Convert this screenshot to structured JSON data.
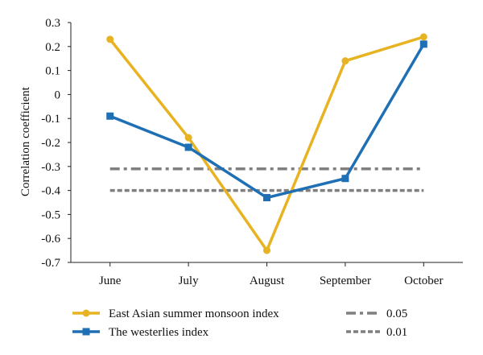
{
  "chart_data": {
    "type": "line",
    "categories": [
      "June",
      "July",
      "August",
      "September",
      "October"
    ],
    "ylabel": "Correlation coefficient",
    "ylim": [
      -0.7,
      0.3
    ],
    "yticks": [
      "0.3",
      "0.2",
      "0.1",
      "0",
      "-0.1",
      "-0.2",
      "-0.3",
      "-0.4",
      "-0.5",
      "-0.6",
      "-0.7"
    ],
    "grid": false,
    "legend_position": "bottom",
    "series": [
      {
        "name": "East Asian summer monsoon index",
        "values": [
          0.23,
          -0.18,
          -0.65,
          0.14,
          0.24
        ],
        "color": "#e8b322",
        "marker": "circle"
      },
      {
        "name": "The westerlies index",
        "values": [
          -0.09,
          -0.22,
          -0.43,
          -0.35,
          0.21
        ],
        "color": "#1f6fb5",
        "marker": "square"
      }
    ],
    "reference_lines": [
      {
        "name": "0.05",
        "value": -0.31,
        "style": "dash-dot",
        "color": "#7f7f7f"
      },
      {
        "name": "0.01",
        "value": -0.4,
        "style": "dashed",
        "color": "#7f7f7f"
      }
    ]
  }
}
